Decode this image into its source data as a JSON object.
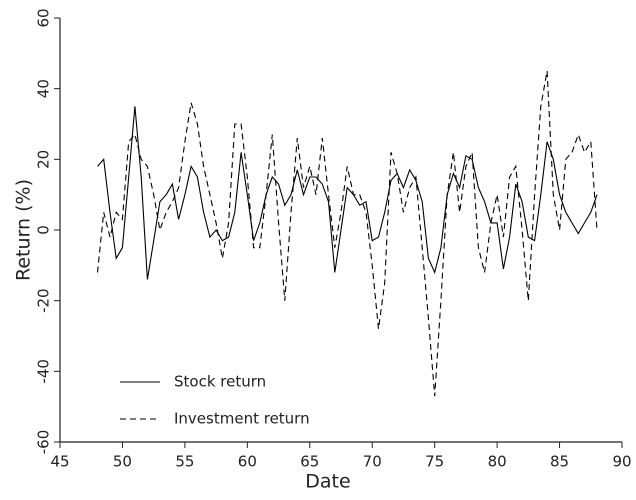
{
  "chart_data": {
    "type": "line",
    "x_label": "Date",
    "y_label": "Return (%)",
    "x": [
      48,
      48.5,
      49,
      49.5,
      50,
      50.5,
      51,
      51.5,
      52,
      52.5,
      53,
      53.5,
      54,
      54.5,
      55,
      55.5,
      56,
      56.5,
      57,
      57.5,
      58,
      58.5,
      59,
      59.5,
      60,
      60.5,
      61,
      61.5,
      62,
      62.5,
      63,
      63.5,
      64,
      64.5,
      65,
      65.5,
      66,
      66.5,
      67,
      67.5,
      68,
      68.5,
      69,
      69.5,
      70,
      70.5,
      71,
      71.5,
      72,
      72.5,
      73,
      73.5,
      74,
      74.5,
      75,
      75.5,
      76,
      76.5,
      77,
      77.5,
      78,
      78.5,
      79,
      79.5,
      80,
      80.5,
      81,
      81.5,
      82,
      82.5,
      83,
      83.5,
      84,
      84.5,
      85,
      85.5,
      86,
      86.5,
      87,
      87.5,
      88
    ],
    "series": [
      {
        "name": "Stock return",
        "color": "#000000",
        "style": "solid",
        "values": [
          18,
          20,
          5,
          -8,
          -5,
          15,
          35,
          15,
          -14,
          -3,
          8,
          10,
          13,
          3,
          10,
          18,
          15,
          5,
          -2,
          0,
          -3,
          -2,
          5,
          22,
          10,
          -3,
          2,
          10,
          15,
          13,
          7,
          10,
          17,
          10,
          15,
          15,
          13,
          8,
          -12,
          0,
          12,
          10,
          7,
          8,
          -3,
          -2,
          5,
          14,
          16,
          12,
          17,
          14,
          8,
          -8,
          -12,
          -5,
          10,
          16,
          12,
          21,
          20,
          12,
          8,
          2,
          2,
          -11,
          -2,
          13,
          8,
          -2,
          -3,
          10,
          25,
          20,
          10,
          5,
          2,
          -1,
          2,
          5,
          10
        ]
      },
      {
        "name": "Investment return",
        "color": "#000000",
        "style": "dashed",
        "values": [
          -12,
          5,
          -2,
          5,
          3,
          25,
          27,
          20,
          18,
          10,
          0,
          5,
          8,
          12,
          25,
          36,
          30,
          18,
          10,
          2,
          -8,
          2,
          30,
          30,
          15,
          -5,
          -5,
          10,
          27,
          2,
          -20,
          5,
          26,
          12,
          18,
          10,
          26,
          10,
          -5,
          5,
          18,
          10,
          10,
          5,
          -10,
          -28,
          -15,
          22,
          16,
          5,
          12,
          15,
          -5,
          -25,
          -47,
          -20,
          10,
          22,
          5,
          18,
          22,
          -5,
          -12,
          2,
          10,
          -2,
          15,
          18,
          0,
          -20,
          10,
          35,
          45,
          10,
          0,
          20,
          22,
          27,
          22,
          25,
          0
        ]
      }
    ],
    "xlim": [
      45,
      90
    ],
    "xticks": [
      45,
      50,
      55,
      60,
      65,
      70,
      75,
      80,
      85,
      90
    ],
    "ylim": [
      -60,
      60
    ],
    "yticks": [
      -60,
      -40,
      -20,
      0,
      20,
      40,
      60
    ],
    "legend": "lower left"
  }
}
